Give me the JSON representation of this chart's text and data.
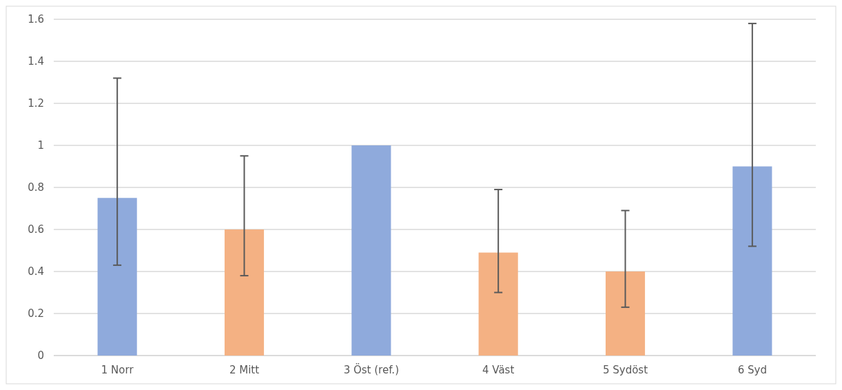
{
  "chart_data": {
    "type": "bar",
    "categories": [
      "1 Norr",
      "2 Mitt",
      "3 Öst (ref.)",
      "4 Väst",
      "5 Sydöst",
      "6 Syd"
    ],
    "values": [
      0.75,
      0.6,
      1.0,
      0.49,
      0.4,
      0.9
    ],
    "colors": [
      "#8faadc",
      "#f4b183",
      "#8faadc",
      "#f4b183",
      "#f4b183",
      "#8faadc"
    ],
    "errors": [
      [
        0.43,
        1.32
      ],
      [
        0.38,
        0.95
      ],
      null,
      [
        0.3,
        0.79
      ],
      [
        0.23,
        0.69
      ],
      [
        0.52,
        1.58
      ]
    ],
    "ylim": [
      0,
      1.6
    ],
    "yticks": [
      0,
      0.2,
      0.4,
      0.6,
      0.8,
      1,
      1.2,
      1.4,
      1.6
    ],
    "grid": "y"
  }
}
